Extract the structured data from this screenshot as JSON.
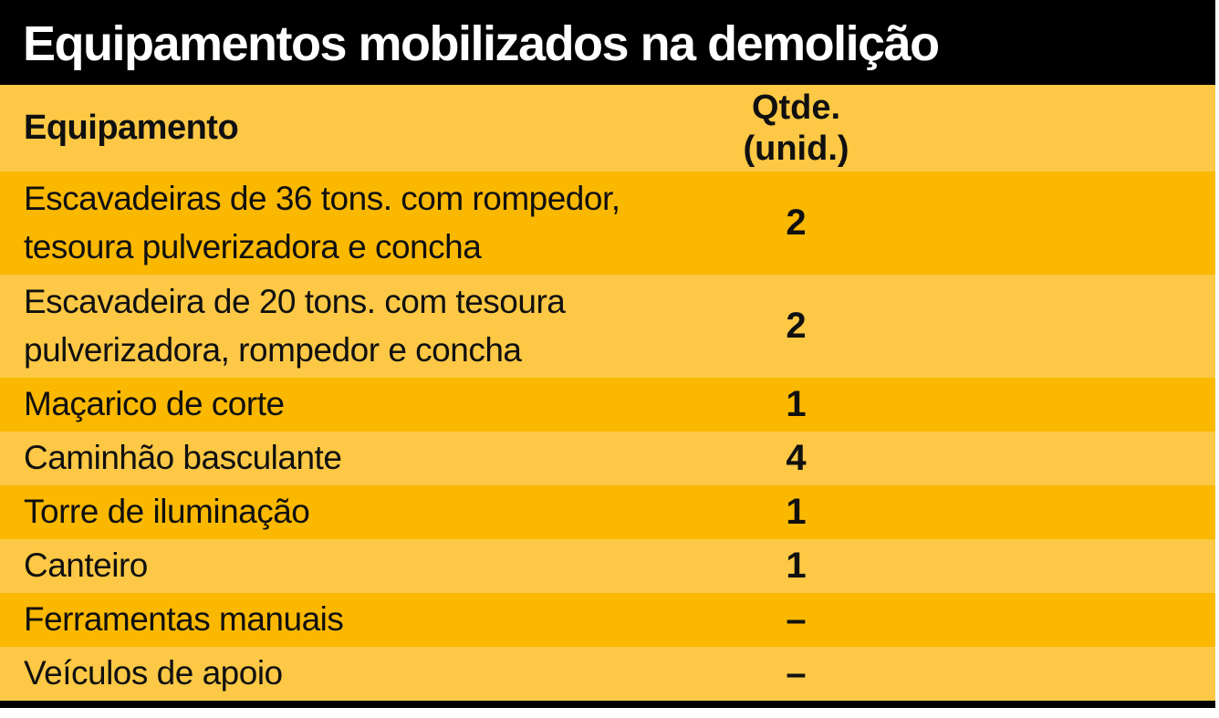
{
  "chart_data": {
    "type": "table",
    "title": "Equipamentos mobilizados na demolição",
    "header": {
      "equipment": "Equipamento",
      "qty_line1": "Qtde.",
      "qty_line2": "(unid.)"
    },
    "rows": [
      {
        "equipment": "Escavadeiras de 36 tons. com rompedor, tesoura pulverizadora e concha",
        "qty": "2"
      },
      {
        "equipment": "Escavadeira de 20 tons. com tesoura pulverizadora, rompedor e concha",
        "qty": "2"
      },
      {
        "equipment": "Maçarico de corte",
        "qty": "1"
      },
      {
        "equipment": "Caminhão basculante",
        "qty": "4"
      },
      {
        "equipment": "Torre de iluminação",
        "qty": "1"
      },
      {
        "equipment": "Canteiro",
        "qty": "1"
      },
      {
        "equipment": "Ferramentas manuais",
        "qty": "–"
      },
      {
        "equipment": "Veículos de apoio",
        "qty": "–"
      }
    ]
  },
  "colors": {
    "row_dark": "#FBB800",
    "row_light": "#FCC845",
    "bar_black": "#000000",
    "text": "#101010",
    "title_text": "#FFFFFF"
  }
}
